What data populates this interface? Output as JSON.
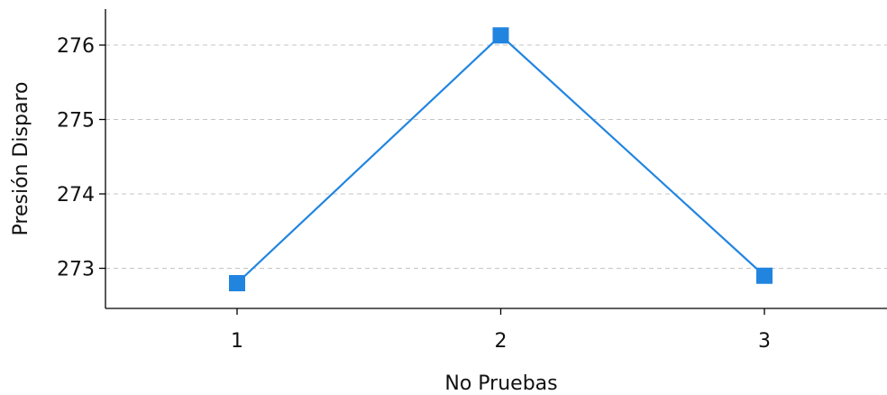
{
  "chart_data": {
    "type": "line",
    "title": "",
    "xlabel": "No Pruebas",
    "ylabel": "Presión Disparo",
    "x": [
      1,
      2,
      3
    ],
    "x_ticks": [
      "1",
      "2",
      "3"
    ],
    "xlim": [
      0.5,
      3.5
    ],
    "y_ticks": [
      "273",
      "274",
      "275",
      "276"
    ],
    "ylim": [
      272.45,
      276.45
    ],
    "series": [
      {
        "values": [
          272.8,
          276.13,
          272.9
        ],
        "color": "#2185e0",
        "marker": "square"
      }
    ],
    "grid": {
      "y": true,
      "x": false,
      "style": "dashed"
    },
    "legend": "none"
  }
}
